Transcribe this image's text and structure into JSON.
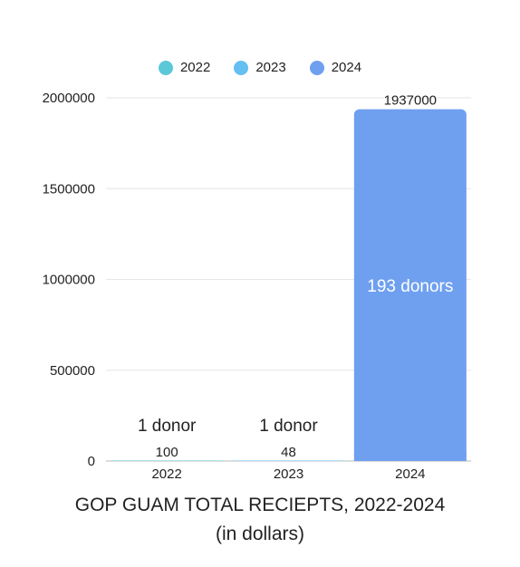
{
  "chart_data": {
    "type": "bar",
    "title": "GOP GUAM TOTAL RECIEPTS, 2022-2024",
    "subtitle": "(in dollars)",
    "categories": [
      "2022",
      "2023",
      "2024"
    ],
    "values": [
      100,
      48,
      1937000
    ],
    "value_labels": [
      "100",
      "48",
      "1937000"
    ],
    "bar_annotations": [
      "1 donor",
      "1 donor",
      "193 donors"
    ],
    "legend": [
      {
        "label": "2022",
        "color": "#5bc8d8"
      },
      {
        "label": "2023",
        "color": "#64bff2"
      },
      {
        "label": "2024",
        "color": "#6fa0f0"
      }
    ],
    "yticks": [
      0,
      500000,
      1000000,
      1500000,
      2000000
    ],
    "ytick_labels": [
      "0",
      "500000",
      "1000000",
      "1500000",
      "2000000"
    ],
    "ylim": [
      0,
      2000000
    ],
    "grid": true,
    "legend_position": "top-center"
  }
}
